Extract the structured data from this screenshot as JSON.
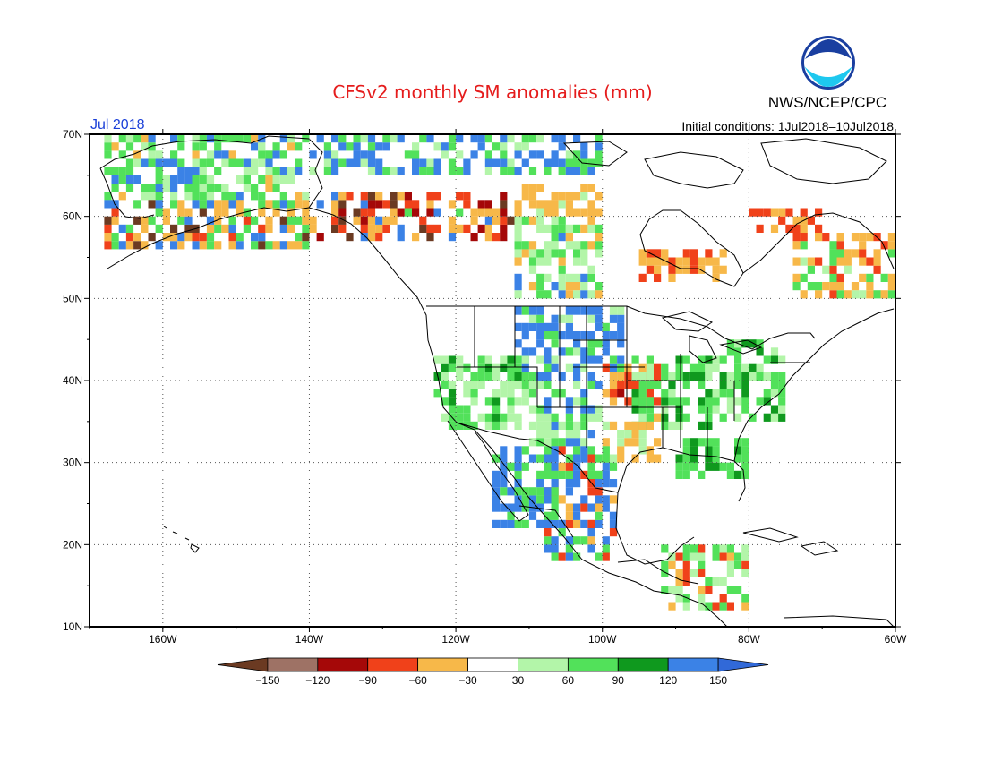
{
  "header": {
    "title": "CFSv2 monthly SM anomalies (mm)",
    "agency": "NWS/NCEP/CPC",
    "logo_text": "NOAA",
    "month_label": "Jul 2018",
    "init_label": "Initial conditions: 1Jul2018–10Jul2018"
  },
  "axes": {
    "lat_labels": [
      "70N",
      "60N",
      "50N",
      "40N",
      "30N",
      "20N",
      "10N"
    ],
    "lon_labels": [
      "160W",
      "140W",
      "120W",
      "100W",
      "80W",
      "60W"
    ]
  },
  "legend": {
    "bins": [
      {
        "color": "#6b3a22"
      },
      {
        "color": "#9e7265"
      },
      {
        "color": "#a50808"
      },
      {
        "color": "#f0411a"
      },
      {
        "color": "#f7b849"
      },
      {
        "color": "#ffffff"
      },
      {
        "color": "#b3f5a9"
      },
      {
        "color": "#52e15a"
      },
      {
        "color": "#0f991e"
      },
      {
        "color": "#3b82e6"
      },
      {
        "color": "#3169d8"
      }
    ],
    "labels": [
      "−150",
      "−120",
      "−90",
      "−60",
      "−30",
      "30",
      "60",
      "90",
      "120",
      "150"
    ]
  },
  "colors": {
    "title": "#e51c1c",
    "month": "#1a3fd8",
    "logo_ring": "#1a3fa0",
    "logo_sky": "#1ec8ef"
  }
}
